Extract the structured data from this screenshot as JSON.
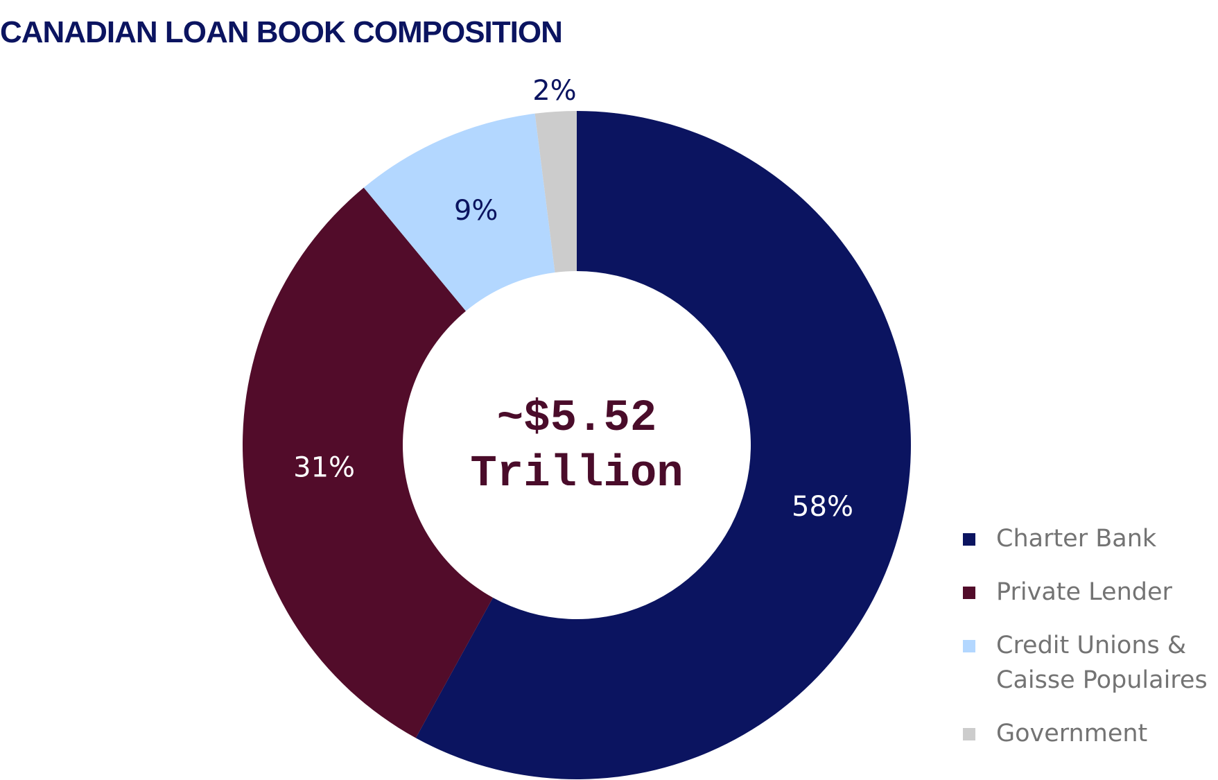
{
  "title": "CANADIAN LOAN BOOK COMPOSITION",
  "center": {
    "line1": "~$5.52",
    "line2": "Trillion",
    "color": "#4a0c2a"
  },
  "chart_data": {
    "type": "pie",
    "variant": "donut",
    "title": "CANADIAN LOAN BOOK COMPOSITION",
    "categories": [
      "Charter Bank",
      "Private Lender",
      "Credit Unions & Caisse Populaires",
      "Government"
    ],
    "values": [
      58,
      31,
      9,
      2
    ],
    "labels": [
      "58%",
      "31%",
      "9%",
      "2%"
    ],
    "colors": [
      "#0b1460",
      "#520c2a",
      "#b3d7ff",
      "#cccccc"
    ],
    "label_colors": [
      "#ffffff",
      "#ffffff",
      "#0b1460",
      "#0b1460"
    ],
    "legend_position": "bottom-right"
  },
  "legend": {
    "items": [
      {
        "label": "Charter Bank",
        "color": "#0b1460"
      },
      {
        "label": "Private Lender",
        "color": "#520c2a"
      },
      {
        "label": "Credit Unions & Caisse Populaires",
        "color": "#b3d7ff"
      },
      {
        "label": "Government",
        "color": "#cccccc"
      }
    ]
  }
}
